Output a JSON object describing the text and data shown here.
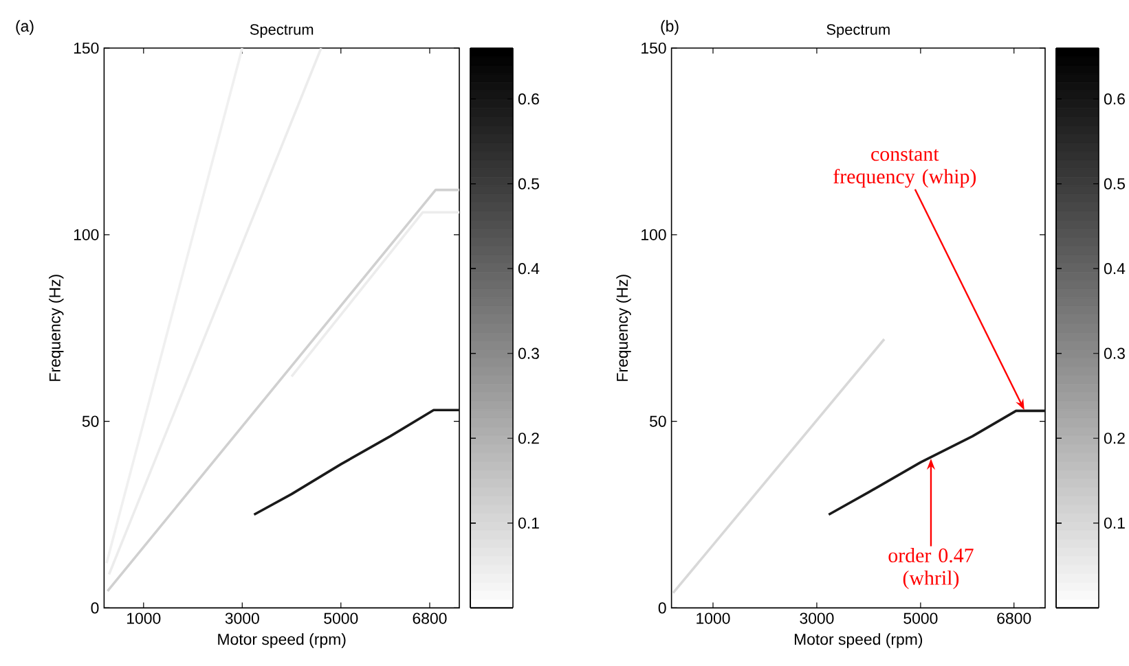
{
  "chart_data": [
    {
      "type": "line",
      "title": "Spectrum",
      "xlabel": "Motor speed (rpm)",
      "ylabel": "Frequency (Hz)",
      "annotations": [
        "(a)"
      ],
      "xlim": [
        200,
        7400
      ],
      "xticks": [
        1000,
        3000,
        5000,
        6800
      ],
      "ylim": [
        0,
        150
      ],
      "yticks": [
        0,
        50,
        100,
        150
      ],
      "clim": [
        0,
        0.66
      ],
      "cticks": [
        0.1,
        0.2,
        0.3,
        0.4,
        0.5,
        0.6
      ],
      "marker": "none",
      "series": [
        {
          "color": "#f0f0f0",
          "x": [
            250,
            3000
          ],
          "values": [
            12,
            150
          ]
        },
        {
          "color": "#ececec",
          "x": [
            300,
            4600
          ],
          "values": [
            9,
            150
          ]
        },
        {
          "color": "#ececec",
          "x": [
            4000,
            6660,
            7400
          ],
          "values": [
            62,
            106,
            106
          ]
        },
        {
          "color": "#d0d0d0",
          "x": [
            270,
            6920,
            7400
          ],
          "values": [
            4.5,
            112,
            112
          ]
        },
        {
          "color": "#1a1a1a",
          "x": [
            3240,
            4000,
            5000,
            6000,
            6880,
            7400
          ],
          "values": [
            25,
            30.5,
            38.5,
            46,
            53,
            53
          ]
        }
      ]
    },
    {
      "type": "line",
      "title": "Spectrum",
      "xlabel": "Motor speed (rpm)",
      "ylabel": "Frequency (Hz)",
      "annotations": [
        "(b)",
        {
          "text": "constant frequency (whip)",
          "x": 7000,
          "y": 53
        },
        {
          "text": "order 0.47 (whril)",
          "x": 5200,
          "y": 40
        }
      ],
      "xlim": [
        200,
        7400
      ],
      "xticks": [
        1000,
        3000,
        5000,
        6800
      ],
      "ylim": [
        0,
        150
      ],
      "yticks": [
        0,
        50,
        100,
        150
      ],
      "clim": [
        0,
        0.66
      ],
      "cticks": [
        0.1,
        0.2,
        0.3,
        0.4,
        0.5,
        0.6
      ],
      "marker": "none",
      "series": [
        {
          "color": "#d8d8d8",
          "x": [
            230,
            4300
          ],
          "values": [
            4,
            72
          ]
        },
        {
          "color": "#1a1a1a",
          "x": [
            3230,
            4000,
            5000,
            6000,
            6840,
            7400
          ],
          "values": [
            25,
            31,
            39,
            46,
            52.8,
            52.8
          ]
        }
      ]
    }
  ]
}
